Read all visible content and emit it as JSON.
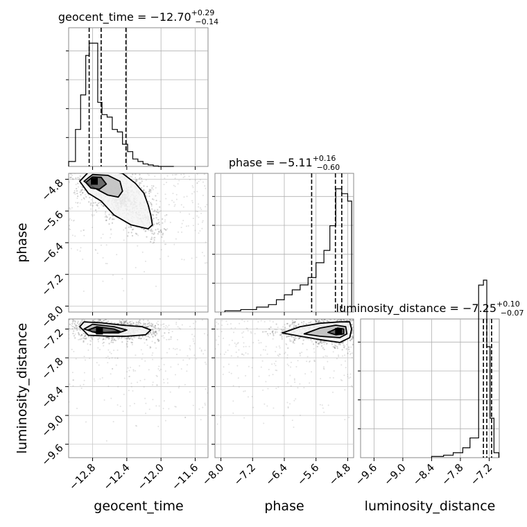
{
  "chart_data": {
    "type": "corner",
    "parameters": [
      "geocent_time",
      "phase",
      "luminosity_distance"
    ],
    "grid": true,
    "titles": [
      {
        "param": "geocent_time",
        "prefix": "geocent_time = ",
        "median": "−12.70",
        "plus": "+0.29",
        "minus": "−0.14"
      },
      {
        "param": "phase",
        "prefix": "phase = ",
        "median": "−5.11",
        "plus": "+0.16",
        "minus": "−0.60"
      },
      {
        "param": "luminosity_distance",
        "prefix": "luminosity_distance = ",
        "median": "−7.25",
        "plus": "+0.10",
        "minus": "−0.07"
      }
    ],
    "axes": {
      "geocent_time": {
        "range": [
          -13.08,
          -11.45
        ],
        "ticks": [
          -12.8,
          -12.4,
          -12.0,
          -11.6
        ],
        "tick_labels": [
          "−12.8",
          "−12.4",
          "−12.0",
          "−11.6"
        ]
      },
      "phase": {
        "range": [
          -8.15,
          -4.65
        ],
        "ticks": [
          -8.0,
          -7.2,
          -6.4,
          -5.6,
          -4.8
        ],
        "tick_labels": [
          "−8.0",
          "−7.2",
          "−6.4",
          "−5.6",
          "−4.8"
        ]
      },
      "luminosity_distance": {
        "range": [
          -9.88,
          -6.99
        ],
        "ticks": [
          -9.6,
          -9.0,
          -8.4,
          -7.8,
          -7.2
        ],
        "tick_labels": [
          "−9.6",
          "−9.0",
          "−8.4",
          "−7.8",
          "−7.2"
        ]
      }
    },
    "histograms": {
      "geocent_time": {
        "bin_edges": [
          -13.08,
          -13.0,
          -12.94,
          -12.88,
          -12.84,
          -12.79,
          -12.74,
          -12.69,
          -12.63,
          -12.57,
          -12.51,
          -12.45,
          -12.39,
          -12.33,
          -12.27,
          -12.21,
          -12.15,
          -12.09,
          -12.03,
          -11.97,
          -11.91,
          -11.85
        ],
        "counts": [
          2,
          15,
          29,
          45,
          50,
          50,
          26,
          21,
          20,
          15,
          14,
          9,
          6,
          3,
          2,
          1,
          0.6,
          0.2,
          0,
          0,
          0
        ],
        "quantiles": [
          -12.84,
          -12.7,
          -12.41
        ]
      },
      "phase": {
        "bin_edges": [
          -7.9,
          -7.5,
          -7.1,
          -6.8,
          -6.6,
          -6.4,
          -6.2,
          -6.0,
          -5.8,
          -5.6,
          -5.4,
          -5.25,
          -5.1,
          -4.95,
          -4.8,
          -4.7
        ],
        "counts": [
          0.5,
          1,
          2,
          3,
          5,
          7,
          9,
          11,
          14,
          20,
          25,
          35,
          50,
          48,
          45,
          0
        ],
        "quantiles": [
          -5.71,
          -5.11,
          -4.95
        ]
      },
      "luminosity_distance": {
        "bin_edges": [
          -8.4,
          -8.15,
          -7.95,
          -7.75,
          -7.6,
          -7.42,
          -7.32,
          -7.25,
          -7.18,
          -7.1,
          -7.0
        ],
        "counts": [
          0.5,
          1,
          2,
          4,
          8,
          70,
          72,
          45,
          16,
          2
        ],
        "quantiles": [
          -7.32,
          -7.25,
          -7.15
        ]
      }
    },
    "contours": {
      "phase_vs_geocent_time": [
        {
          "level": "outer",
          "points": [
            [
              -12.95,
              -4.85
            ],
            [
              -12.85,
              -4.62
            ],
            [
              -12.65,
              -4.58
            ],
            [
              -12.45,
              -4.65
            ],
            [
              -12.3,
              -4.9
            ],
            [
              -12.2,
              -5.15
            ],
            [
              -12.15,
              -5.45
            ],
            [
              -12.12,
              -5.7
            ],
            [
              -12.1,
              -5.95
            ],
            [
              -12.15,
              -6.05
            ],
            [
              -12.35,
              -5.95
            ],
            [
              -12.55,
              -5.7
            ],
            [
              -12.7,
              -5.35
            ],
            [
              -12.85,
              -5.15
            ]
          ]
        },
        {
          "level": "middle",
          "points": [
            [
              -12.9,
              -4.85
            ],
            [
              -12.8,
              -4.68
            ],
            [
              -12.62,
              -4.7
            ],
            [
              -12.48,
              -4.85
            ],
            [
              -12.45,
              -5.1
            ],
            [
              -12.5,
              -5.25
            ],
            [
              -12.62,
              -5.2
            ],
            [
              -12.75,
              -5.05
            ]
          ]
        },
        {
          "level": "inner",
          "points": [
            [
              -12.88,
              -4.88
            ],
            [
              -12.8,
              -4.74
            ],
            [
              -12.7,
              -4.75
            ],
            [
              -12.64,
              -4.92
            ],
            [
              -12.72,
              -5.05
            ],
            [
              -12.82,
              -5.02
            ]
          ]
        }
      ],
      "luminosity_distance_vs_geocent_time": [
        {
          "level": "outer",
          "points": [
            [
              -12.95,
              -7.15
            ],
            [
              -12.9,
              -7.05
            ],
            [
              -12.7,
              -7.07
            ],
            [
              -12.45,
              -7.12
            ],
            [
              -12.22,
              -7.15
            ],
            [
              -12.12,
              -7.22
            ],
            [
              -12.18,
              -7.32
            ],
            [
              -12.4,
              -7.35
            ],
            [
              -12.6,
              -7.35
            ],
            [
              -12.85,
              -7.33
            ]
          ]
        },
        {
          "level": "middle",
          "points": [
            [
              -12.9,
              -7.2
            ],
            [
              -12.8,
              -7.1
            ],
            [
              -12.55,
              -7.15
            ],
            [
              -12.4,
              -7.22
            ],
            [
              -12.5,
              -7.28
            ],
            [
              -12.75,
              -7.28
            ]
          ]
        },
        {
          "level": "inner",
          "points": [
            [
              -12.85,
              -7.22
            ],
            [
              -12.75,
              -7.15
            ],
            [
              -12.55,
              -7.2
            ],
            [
              -12.48,
              -7.25
            ],
            [
              -12.65,
              -7.27
            ],
            [
              -12.8,
              -7.26
            ]
          ]
        }
      ],
      "luminosity_distance_vs_phase": [
        {
          "level": "outer",
          "points": [
            [
              -6.45,
              -7.28
            ],
            [
              -6.0,
              -7.15
            ],
            [
              -5.5,
              -7.08
            ],
            [
              -5.0,
              -7.05
            ],
            [
              -4.75,
              -7.05
            ],
            [
              -4.7,
              -7.2
            ],
            [
              -4.75,
              -7.38
            ],
            [
              -5.0,
              -7.48
            ],
            [
              -5.5,
              -7.42
            ],
            [
              -6.0,
              -7.35
            ]
          ]
        },
        {
          "level": "middle",
          "points": [
            [
              -5.9,
              -7.3
            ],
            [
              -5.5,
              -7.18
            ],
            [
              -5.1,
              -7.12
            ],
            [
              -4.85,
              -7.15
            ],
            [
              -4.82,
              -7.3
            ],
            [
              -5.0,
              -7.38
            ],
            [
              -5.5,
              -7.35
            ]
          ]
        },
        {
          "level": "inner",
          "points": [
            [
              -5.3,
              -7.27
            ],
            [
              -5.05,
              -7.18
            ],
            [
              -4.9,
              -7.2
            ],
            [
              -4.9,
              -7.3
            ],
            [
              -5.1,
              -7.32
            ]
          ]
        }
      ]
    },
    "density_peaks": {
      "phase_vs_geocent_time": [
        -12.78,
        -4.85
      ],
      "luminosity_distance_vs_geocent_time": [
        -12.72,
        -7.24
      ],
      "luminosity_distance_vs_phase": [
        -5.03,
        -7.25
      ]
    }
  }
}
